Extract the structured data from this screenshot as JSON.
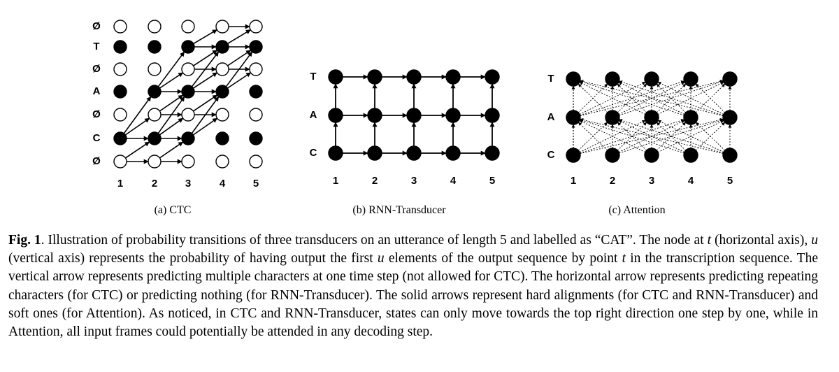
{
  "panels": [
    {
      "id": "ctc",
      "caption": "(a) CTC",
      "row_labels": [
        "Ø",
        "T",
        "Ø",
        "A",
        "Ø",
        "C",
        "Ø"
      ],
      "col_labels": [
        "1",
        "2",
        "3",
        "4",
        "5"
      ]
    },
    {
      "id": "rnnt",
      "caption": "(b) RNN-Transducer",
      "row_labels": [
        "T",
        "A",
        "C"
      ],
      "col_labels": [
        "1",
        "2",
        "3",
        "4",
        "5"
      ]
    },
    {
      "id": "attention",
      "caption": "(c) Attention",
      "row_labels": [
        "T",
        "A",
        "C"
      ],
      "col_labels": [
        "1",
        "2",
        "3",
        "4",
        "5"
      ]
    }
  ],
  "caption": {
    "label": "Fig. 1",
    "parts": [
      ". Illustration of probability transitions of three transducers on an utterance of length 5 and labelled as “CAT”. The node at ",
      "t",
      " (horizontal axis), ",
      "u",
      " (vertical axis) represents the probability of having output the first ",
      "u",
      " elements of the output sequence by point ",
      "t",
      " in the transcription sequence. The vertical arrow represents predicting multiple characters at one time step (not allowed for CTC). The horizontal arrow represents predicting repeating characters (for CTC) or predicting nothing (for RNN-Transducer). The solid arrows represent hard alignments (for CTC and RNN-Transducer) and soft ones (for Attention). As noticed, in CTC and RNN-Transducer, states can only move towards the top right direction one step by one, while in Attention, all input frames could potentially be attended in any decoding step."
    ]
  }
}
